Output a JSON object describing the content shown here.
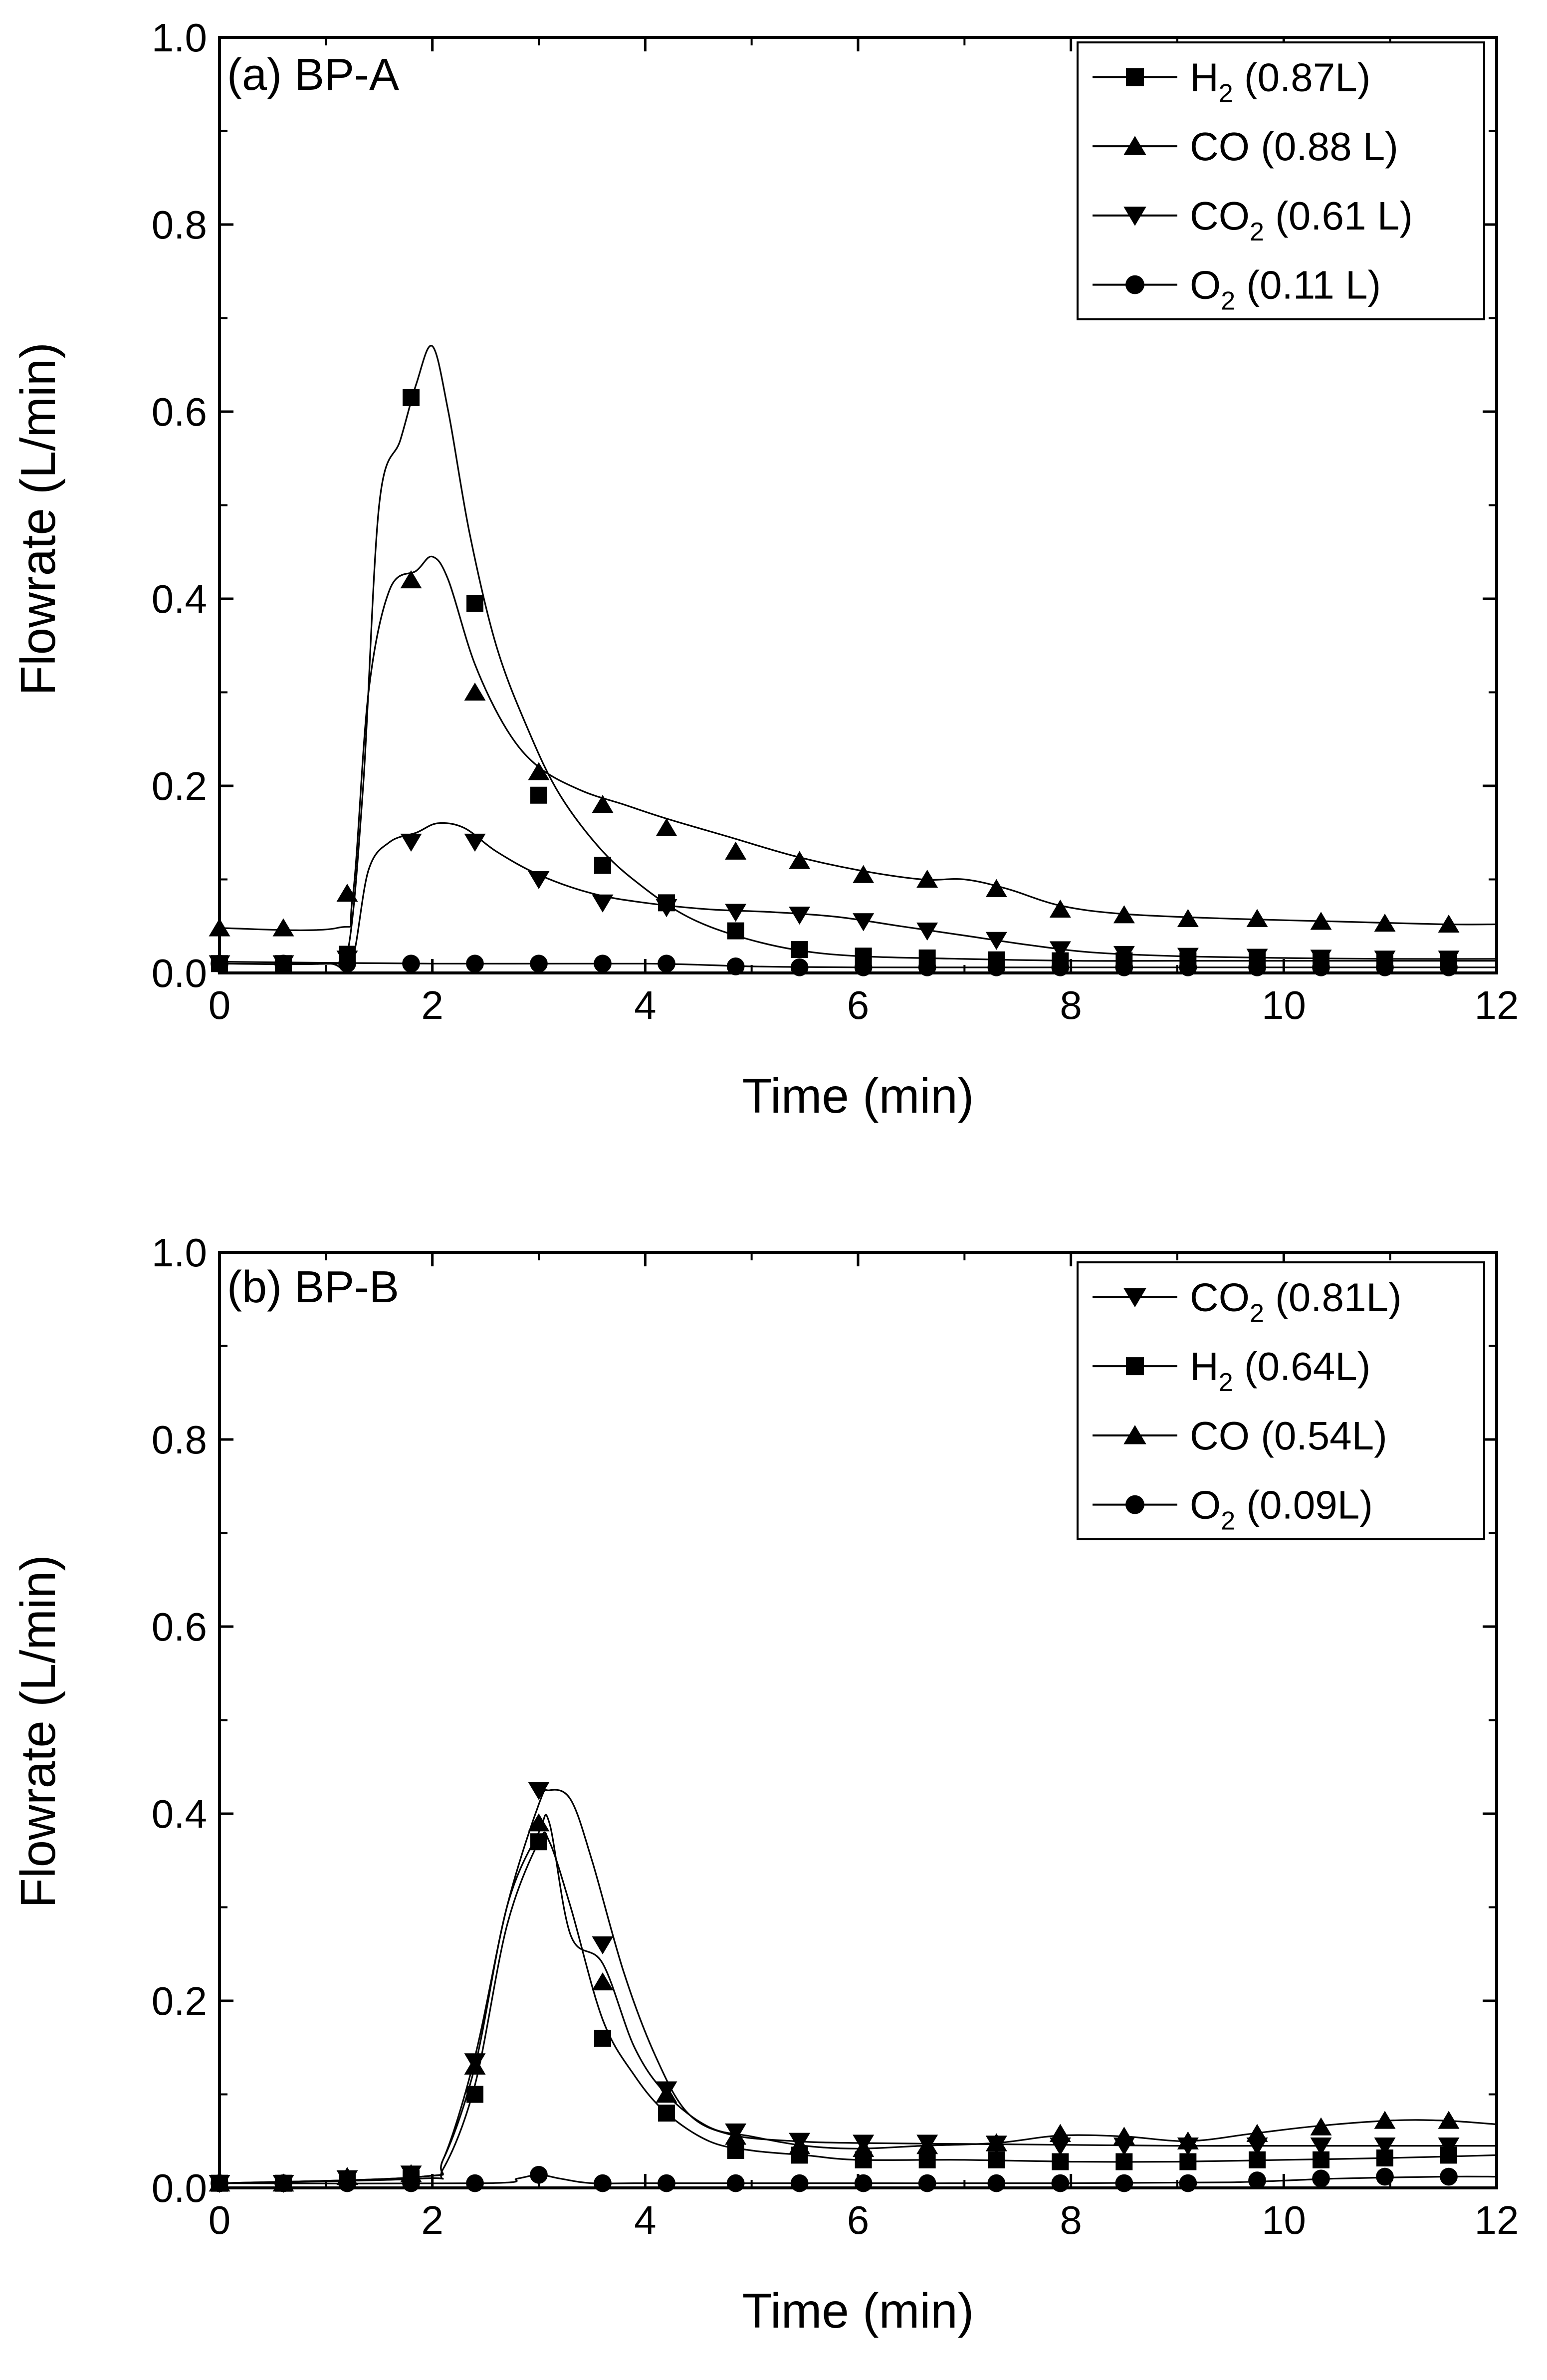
{
  "chart_data": [
    {
      "type": "line",
      "title": "(a) BP-A",
      "xlabel": "Time (min)",
      "ylabel": "Flowrate (L/min)",
      "xlim": [
        0,
        12
      ],
      "ylim": [
        0,
        1.0
      ],
      "xticks": [
        "0",
        "2",
        "4",
        "6",
        "8",
        "10",
        "12"
      ],
      "yticks": [
        "0.0",
        "0.2",
        "0.4",
        "0.6",
        "0.8",
        "1.0"
      ],
      "legend_position": "top-right",
      "series": [
        {
          "name": "H2 (0.87L)",
          "base": "H",
          "sub": "2",
          "rest": " (0.87L)",
          "marker": "square",
          "x": [
            0,
            0.6,
            1.2,
            1.8,
            2.4,
            3.0,
            3.6,
            4.2,
            4.85,
            5.45,
            6.05,
            6.65,
            7.3,
            7.9,
            8.5,
            9.1,
            9.75,
            10.35,
            10.95,
            11.55
          ],
          "y": [
            0.01,
            0.01,
            0.02,
            0.615,
            0.395,
            0.19,
            0.115,
            0.075,
            0.045,
            0.025,
            0.018,
            0.016,
            0.014,
            0.013,
            0.013,
            0.013,
            0.013,
            0.013,
            0.013,
            0.013
          ],
          "curve_x": [
            0,
            1.0,
            1.2,
            1.35,
            1.5,
            1.7,
            1.85,
            2.0,
            2.15,
            2.35,
            2.6,
            2.9,
            3.2,
            3.6,
            4.0,
            4.4,
            4.85,
            5.4,
            6.0,
            7.0,
            8.0,
            9.0,
            10.0,
            11.0,
            12.0
          ],
          "curve_y": [
            0.01,
            0.01,
            0.02,
            0.2,
            0.5,
            0.57,
            0.63,
            0.67,
            0.6,
            0.47,
            0.35,
            0.26,
            0.19,
            0.13,
            0.09,
            0.06,
            0.04,
            0.025,
            0.018,
            0.015,
            0.013,
            0.013,
            0.013,
            0.013,
            0.013
          ]
        },
        {
          "name": "CO (0.88 L)",
          "base": "CO",
          "sub": "",
          "rest": " (0.88 L)",
          "marker": "triangle-up",
          "x": [
            0,
            0.6,
            1.2,
            1.8,
            2.4,
            3.0,
            3.6,
            4.2,
            4.85,
            5.45,
            6.05,
            6.65,
            7.3,
            7.9,
            8.5,
            9.1,
            9.75,
            10.35,
            10.95,
            11.55
          ],
          "y": [
            0.048,
            0.048,
            0.085,
            0.42,
            0.3,
            0.215,
            0.18,
            0.155,
            0.13,
            0.12,
            0.105,
            0.1,
            0.09,
            0.068,
            0.062,
            0.058,
            0.058,
            0.055,
            0.053,
            0.052
          ],
          "curve_x": [
            0,
            1.1,
            1.25,
            1.4,
            1.6,
            1.85,
            2.0,
            2.15,
            2.4,
            2.7,
            3.0,
            3.4,
            3.8,
            4.2,
            4.8,
            5.4,
            6.0,
            6.6,
            7.0,
            7.4,
            7.9,
            8.5,
            9.5,
            10.5,
            11.5,
            12.0
          ],
          "curve_y": [
            0.048,
            0.048,
            0.08,
            0.3,
            0.41,
            0.43,
            0.445,
            0.42,
            0.33,
            0.26,
            0.22,
            0.195,
            0.18,
            0.165,
            0.145,
            0.125,
            0.11,
            0.1,
            0.1,
            0.09,
            0.072,
            0.063,
            0.058,
            0.055,
            0.052,
            0.052
          ]
        },
        {
          "name": "CO2 (0.61 L)",
          "base": "CO",
          "sub": "2",
          "rest": " (0.61 L)",
          "marker": "triangle-down",
          "x": [
            0,
            0.6,
            1.2,
            1.8,
            2.4,
            3.0,
            3.6,
            4.2,
            4.85,
            5.45,
            6.05,
            6.65,
            7.3,
            7.9,
            8.5,
            9.1,
            9.75,
            10.35,
            10.95,
            11.55
          ],
          "y": [
            0.01,
            0.01,
            0.015,
            0.14,
            0.14,
            0.1,
            0.075,
            0.07,
            0.065,
            0.062,
            0.055,
            0.045,
            0.035,
            0.025,
            0.02,
            0.018,
            0.017,
            0.016,
            0.015,
            0.015
          ],
          "curve_x": [
            0,
            1.1,
            1.25,
            1.4,
            1.6,
            1.85,
            2.05,
            2.3,
            2.6,
            3.0,
            3.5,
            4.0,
            4.6,
            5.2,
            5.8,
            6.4,
            7.0,
            7.6,
            8.2,
            9.0,
            10.0,
            11.0,
            12.0
          ],
          "curve_y": [
            0.01,
            0.01,
            0.015,
            0.11,
            0.14,
            0.15,
            0.16,
            0.155,
            0.13,
            0.105,
            0.085,
            0.075,
            0.068,
            0.065,
            0.06,
            0.05,
            0.04,
            0.03,
            0.022,
            0.018,
            0.016,
            0.015,
            0.015
          ]
        },
        {
          "name": "O2 (0.11 L)",
          "base": "O",
          "sub": "2",
          "rest": " (0.11 L)",
          "marker": "circle",
          "x": [
            0,
            0.6,
            1.2,
            1.8,
            2.4,
            3.0,
            3.6,
            4.2,
            4.85,
            5.45,
            6.05,
            6.65,
            7.3,
            7.9,
            8.5,
            9.1,
            9.75,
            10.35,
            10.95,
            11.55
          ],
          "y": [
            0.01,
            0.01,
            0.01,
            0.01,
            0.01,
            0.01,
            0.01,
            0.01,
            0.007,
            0.006,
            0.006,
            0.006,
            0.006,
            0.006,
            0.006,
            0.006,
            0.006,
            0.006,
            0.006,
            0.006
          ],
          "curve_x": [
            0,
            2,
            4,
            5,
            6,
            8,
            10,
            12
          ],
          "curve_y": [
            0.012,
            0.01,
            0.01,
            0.007,
            0.006,
            0.006,
            0.006,
            0.006
          ]
        }
      ]
    },
    {
      "type": "line",
      "title": "(b) BP-B",
      "xlabel": "Time (min)",
      "ylabel": "Flowrate (L/min)",
      "xlim": [
        0,
        12
      ],
      "ylim": [
        0,
        1.0
      ],
      "xticks": [
        "0",
        "2",
        "4",
        "6",
        "8",
        "10",
        "12"
      ],
      "yticks": [
        "0.0",
        "0.2",
        "0.4",
        "0.6",
        "0.8",
        "1.0"
      ],
      "legend_position": "top-right",
      "series": [
        {
          "name": "CO2 (0.81L)",
          "base": "CO",
          "sub": "2",
          "rest": " (0.81L)",
          "marker": "triangle-down",
          "x": [
            0,
            0.6,
            1.2,
            1.8,
            2.4,
            3.0,
            3.6,
            4.2,
            4.85,
            5.45,
            6.05,
            6.65,
            7.3,
            7.9,
            8.5,
            9.1,
            9.75,
            10.35,
            10.95,
            11.55
          ],
          "y": [
            0.005,
            0.005,
            0.01,
            0.015,
            0.135,
            0.425,
            0.26,
            0.105,
            0.06,
            0.05,
            0.048,
            0.048,
            0.047,
            0.045,
            0.045,
            0.045,
            0.045,
            0.045,
            0.045,
            0.045
          ],
          "curve_x": [
            0,
            1.9,
            2.1,
            2.4,
            2.7,
            3.0,
            3.1,
            3.3,
            3.5,
            3.8,
            4.1,
            4.4,
            4.8,
            5.4,
            6.0,
            7.0,
            8.0,
            9.0,
            10.0,
            11.0,
            12.0
          ],
          "curve_y": [
            0.005,
            0.012,
            0.03,
            0.14,
            0.3,
            0.41,
            0.425,
            0.415,
            0.35,
            0.23,
            0.14,
            0.08,
            0.057,
            0.05,
            0.048,
            0.047,
            0.046,
            0.045,
            0.045,
            0.045,
            0.045
          ]
        },
        {
          "name": "H2 (0.64L)",
          "base": "H",
          "sub": "2",
          "rest": " (0.64L)",
          "marker": "square",
          "x": [
            0,
            0.6,
            1.2,
            1.8,
            2.4,
            3.0,
            3.6,
            4.2,
            4.85,
            5.45,
            6.05,
            6.65,
            7.3,
            7.9,
            8.5,
            9.1,
            9.75,
            10.35,
            10.95,
            11.55
          ],
          "y": [
            0.005,
            0.005,
            0.008,
            0.01,
            0.1,
            0.37,
            0.16,
            0.08,
            0.04,
            0.035,
            0.03,
            0.03,
            0.03,
            0.028,
            0.028,
            0.028,
            0.03,
            0.03,
            0.032,
            0.035
          ],
          "curve_x": [
            0,
            1.9,
            2.1,
            2.4,
            2.7,
            3.0,
            3.1,
            3.3,
            3.6,
            3.9,
            4.2,
            4.6,
            5.0,
            5.5,
            6.0,
            7.0,
            8.0,
            9.0,
            10.0,
            11.0,
            12.0
          ],
          "curve_y": [
            0.005,
            0.01,
            0.02,
            0.11,
            0.28,
            0.37,
            0.37,
            0.3,
            0.18,
            0.12,
            0.08,
            0.05,
            0.04,
            0.035,
            0.03,
            0.03,
            0.028,
            0.028,
            0.03,
            0.032,
            0.035
          ]
        },
        {
          "name": "CO (0.54L)",
          "base": "CO",
          "sub": "",
          "rest": " (0.54L)",
          "marker": "triangle-up",
          "x": [
            0,
            0.6,
            1.2,
            1.8,
            2.4,
            3.0,
            3.6,
            4.2,
            4.85,
            5.45,
            6.05,
            6.65,
            7.3,
            7.9,
            8.5,
            9.1,
            9.75,
            10.35,
            10.95,
            11.55
          ],
          "y": [
            0.005,
            0.005,
            0.012,
            0.015,
            0.13,
            0.39,
            0.22,
            0.1,
            0.055,
            0.045,
            0.042,
            0.045,
            0.048,
            0.058,
            0.055,
            0.05,
            0.058,
            0.065,
            0.072,
            0.072
          ],
          "curve_x": [
            0,
            1.9,
            2.1,
            2.4,
            2.7,
            3.0,
            3.1,
            3.3,
            3.6,
            3.9,
            4.2,
            4.6,
            5.0,
            5.5,
            6.0,
            6.6,
            7.3,
            7.9,
            8.5,
            9.1,
            9.7,
            10.3,
            11.0,
            11.5,
            12.0
          ],
          "curve_y": [
            0.005,
            0.012,
            0.03,
            0.13,
            0.3,
            0.38,
            0.39,
            0.27,
            0.24,
            0.15,
            0.1,
            0.065,
            0.055,
            0.045,
            0.042,
            0.045,
            0.048,
            0.056,
            0.055,
            0.05,
            0.058,
            0.066,
            0.072,
            0.072,
            0.068
          ]
        },
        {
          "name": "O2 (0.09L)",
          "base": "O",
          "sub": "2",
          "rest": " (0.09L)",
          "marker": "circle",
          "x": [
            0,
            0.6,
            1.2,
            1.8,
            2.4,
            3.0,
            3.6,
            4.2,
            4.85,
            5.45,
            6.05,
            6.65,
            7.3,
            7.9,
            8.5,
            9.1,
            9.75,
            10.35,
            10.95,
            11.55
          ],
          "y": [
            0.005,
            0.005,
            0.005,
            0.005,
            0.005,
            0.014,
            0.005,
            0.005,
            0.005,
            0.005,
            0.005,
            0.005,
            0.005,
            0.005,
            0.005,
            0.005,
            0.008,
            0.01,
            0.012,
            0.012
          ],
          "curve_x": [
            0,
            2.5,
            2.8,
            3.0,
            3.2,
            3.5,
            4,
            6,
            8,
            9.5,
            10.5,
            11.5,
            12.0
          ],
          "curve_y": [
            0.005,
            0.005,
            0.01,
            0.014,
            0.01,
            0.005,
            0.005,
            0.005,
            0.005,
            0.006,
            0.01,
            0.012,
            0.012
          ]
        }
      ]
    }
  ]
}
